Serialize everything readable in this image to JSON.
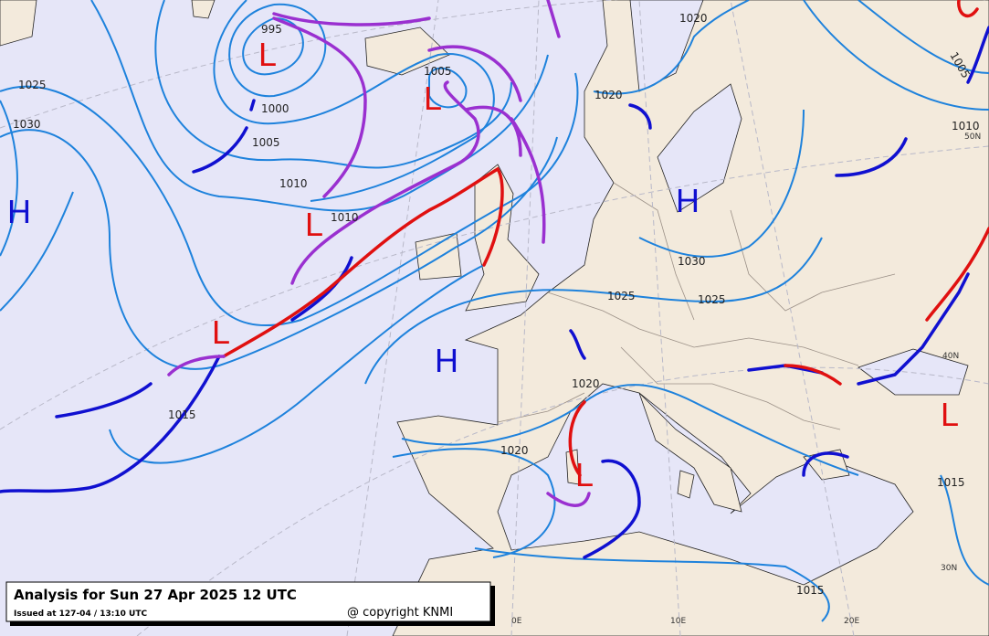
{
  "title": "Analysis for Sun 27 Apr 2025 12 UTC",
  "issued": "Issued at 127-04 / 13:10 UTC",
  "copyright": "@ copyright KNMI",
  "pressure_labels": [
    "995",
    "1000",
    "1005",
    "1005",
    "1005",
    "1010",
    "1010",
    "1010",
    "1015",
    "1015",
    "1015",
    "1020",
    "1020",
    "1020",
    "1020",
    "1025",
    "1025",
    "1025",
    "1030",
    "1030"
  ],
  "centers": [
    "H",
    "H",
    "H",
    "L",
    "L",
    "L",
    "L",
    "L",
    "L"
  ],
  "grid_labels": [
    "50N",
    "40N",
    "30N",
    "0E",
    "10E",
    "20E"
  ]
}
